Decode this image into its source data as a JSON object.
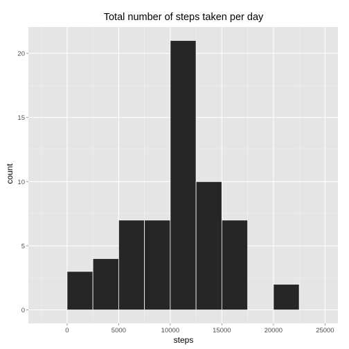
{
  "chart_data": {
    "type": "bar",
    "title": "Total number of steps taken per day",
    "xlabel": "steps",
    "ylabel": "count",
    "bin_width": 2500,
    "bins": [
      {
        "x0": 0,
        "x1": 2500,
        "count": 3
      },
      {
        "x0": 2500,
        "x1": 5000,
        "count": 4
      },
      {
        "x0": 5000,
        "x1": 7500,
        "count": 7
      },
      {
        "x0": 7500,
        "x1": 10000,
        "count": 7
      },
      {
        "x0": 10000,
        "x1": 12500,
        "count": 21
      },
      {
        "x0": 12500,
        "x1": 15000,
        "count": 10
      },
      {
        "x0": 15000,
        "x1": 17500,
        "count": 7
      },
      {
        "x0": 17500,
        "x1": 20000,
        "count": 0
      },
      {
        "x0": 20000,
        "x1": 22500,
        "count": 2
      }
    ],
    "xlim": [
      -3750,
      26250
    ],
    "ylim": [
      -1.05,
      22.05
    ],
    "xticks": [
      0,
      5000,
      10000,
      15000,
      20000,
      25000
    ],
    "yticks": [
      0,
      5,
      10,
      15,
      20
    ],
    "grid": true,
    "colors": {
      "panel_background": "#e5e5e5",
      "grid_major": "#ffffff",
      "grid_minor": "#f2f2f2",
      "bar_fill": "#262626",
      "bar_outline": "#ffffff"
    }
  }
}
